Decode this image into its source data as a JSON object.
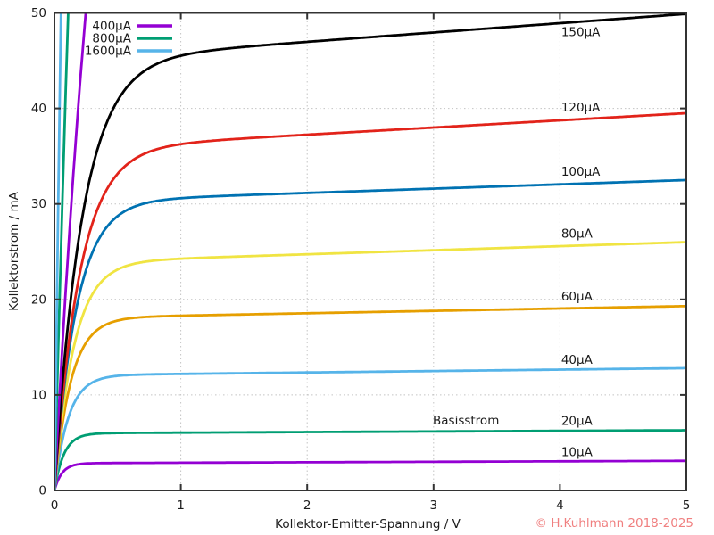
{
  "page": {
    "background": "#ffffff",
    "axis_color": "#333333",
    "grid_color": "#c4c4c4",
    "text_color": "#1a1a1a",
    "copyright_text": "© H.Kuhlmann 2018-2025",
    "copyright_color": "#f08080"
  },
  "chart_data": {
    "type": "line",
    "title": "",
    "xlabel": "Kollektor-Emitter-Spannung / V",
    "ylabel": "Kollektorstrom / mA",
    "xlim": [
      0,
      5
    ],
    "ylim": [
      0,
      50
    ],
    "xticks": [
      0,
      1,
      2,
      3,
      4,
      5
    ],
    "yticks": [
      0,
      10,
      20,
      30,
      40,
      50
    ],
    "grid": "dotted-at-major-ticks",
    "annotation": {
      "text": "Basisstrom",
      "x_v": 3.0,
      "y_ma": 7.3
    },
    "x_sample": [
      0,
      0.5,
      1,
      2,
      3,
      4,
      5
    ],
    "series": [
      {
        "name": "10µA",
        "color": "#9400d3",
        "values": [
          0,
          2.9,
          2.9,
          3.0,
          3.0,
          3.1,
          3.1
        ],
        "model": {
          "i1": 2.9,
          "i5": 3.1,
          "v0": 0.06
        },
        "label_at": {
          "x_v": 4.01,
          "y_ma": 4.0
        }
      },
      {
        "name": "20µA",
        "color": "#009e73",
        "values": [
          0,
          6.0,
          6.1,
          6.1,
          6.2,
          6.25,
          6.3
        ],
        "model": {
          "i1": 6.05,
          "i5": 6.3,
          "v0": 0.075
        },
        "label_at": {
          "x_v": 4.01,
          "y_ma": 7.3
        }
      },
      {
        "name": "40µA",
        "color": "#56b4e9",
        "values": [
          0,
          12.0,
          12.2,
          12.35,
          12.5,
          12.65,
          12.8
        ],
        "model": {
          "i1": 12.2,
          "i5": 12.8,
          "v0": 0.11
        },
        "label_at": {
          "x_v": 4.01,
          "y_ma": 13.7
        }
      },
      {
        "name": "60µA",
        "color": "#e69f00",
        "values": [
          0,
          17.8,
          18.3,
          18.55,
          18.8,
          19.05,
          19.3
        ],
        "model": {
          "i1": 18.3,
          "i5": 19.3,
          "v0": 0.13
        },
        "label_at": {
          "x_v": 4.01,
          "y_ma": 20.3
        }
      },
      {
        "name": "80µA",
        "color": "#f0e442",
        "values": [
          0,
          23.1,
          24.2,
          24.7,
          25.15,
          25.6,
          26.0
        ],
        "model": {
          "i1": 24.3,
          "i5": 26.0,
          "v0": 0.155
        },
        "label_at": {
          "x_v": 4.01,
          "y_ma": 26.9
        }
      },
      {
        "name": "100µA",
        "color": "#0072b2",
        "values": [
          0,
          28.7,
          30.6,
          31.15,
          31.6,
          32.05,
          32.5
        ],
        "model": {
          "i1": 30.7,
          "i5": 32.5,
          "v0": 0.175
        },
        "label_at": {
          "x_v": 4.01,
          "y_ma": 33.4
        }
      },
      {
        "name": "120µA",
        "color": "#e2231a",
        "values": [
          0,
          33.2,
          36.3,
          37.25,
          38.0,
          38.75,
          39.5
        ],
        "model": {
          "i1": 36.5,
          "i5": 39.5,
          "v0": 0.2
        },
        "label_at": {
          "x_v": 4.01,
          "y_ma": 40.1
        }
      },
      {
        "name": "150µA",
        "color": "#000000",
        "values": [
          0,
          40.8,
          45.5,
          47.0,
          48.0,
          48.95,
          49.9
        ],
        "model": {
          "i1": 46.0,
          "i5": 49.9,
          "v0": 0.22
        },
        "label_at": {
          "x_v": 4.01,
          "y_ma": 48.0
        }
      }
    ],
    "saturation_series": [
      {
        "name": "400µA",
        "color": "#9400d3",
        "v_at_50mA": 0.245,
        "model": {
          "A": 128,
          "v0": 0.5
        }
      },
      {
        "name": "800µA",
        "color": "#009e73",
        "v_at_50mA": 0.108,
        "model": {
          "A": 256,
          "v0": 0.5
        }
      },
      {
        "name": "1600µA",
        "color": "#56b4e9",
        "v_at_50mA": 0.051,
        "model": {
          "A": 512,
          "v0": 0.5
        }
      }
    ],
    "legend": {
      "position": "top-left-inside",
      "entries": [
        {
          "label": "400µA",
          "color": "#9400d3"
        },
        {
          "label": "800µA",
          "color": "#009e73"
        },
        {
          "label": "1600µA",
          "color": "#56b4e9"
        }
      ]
    }
  }
}
